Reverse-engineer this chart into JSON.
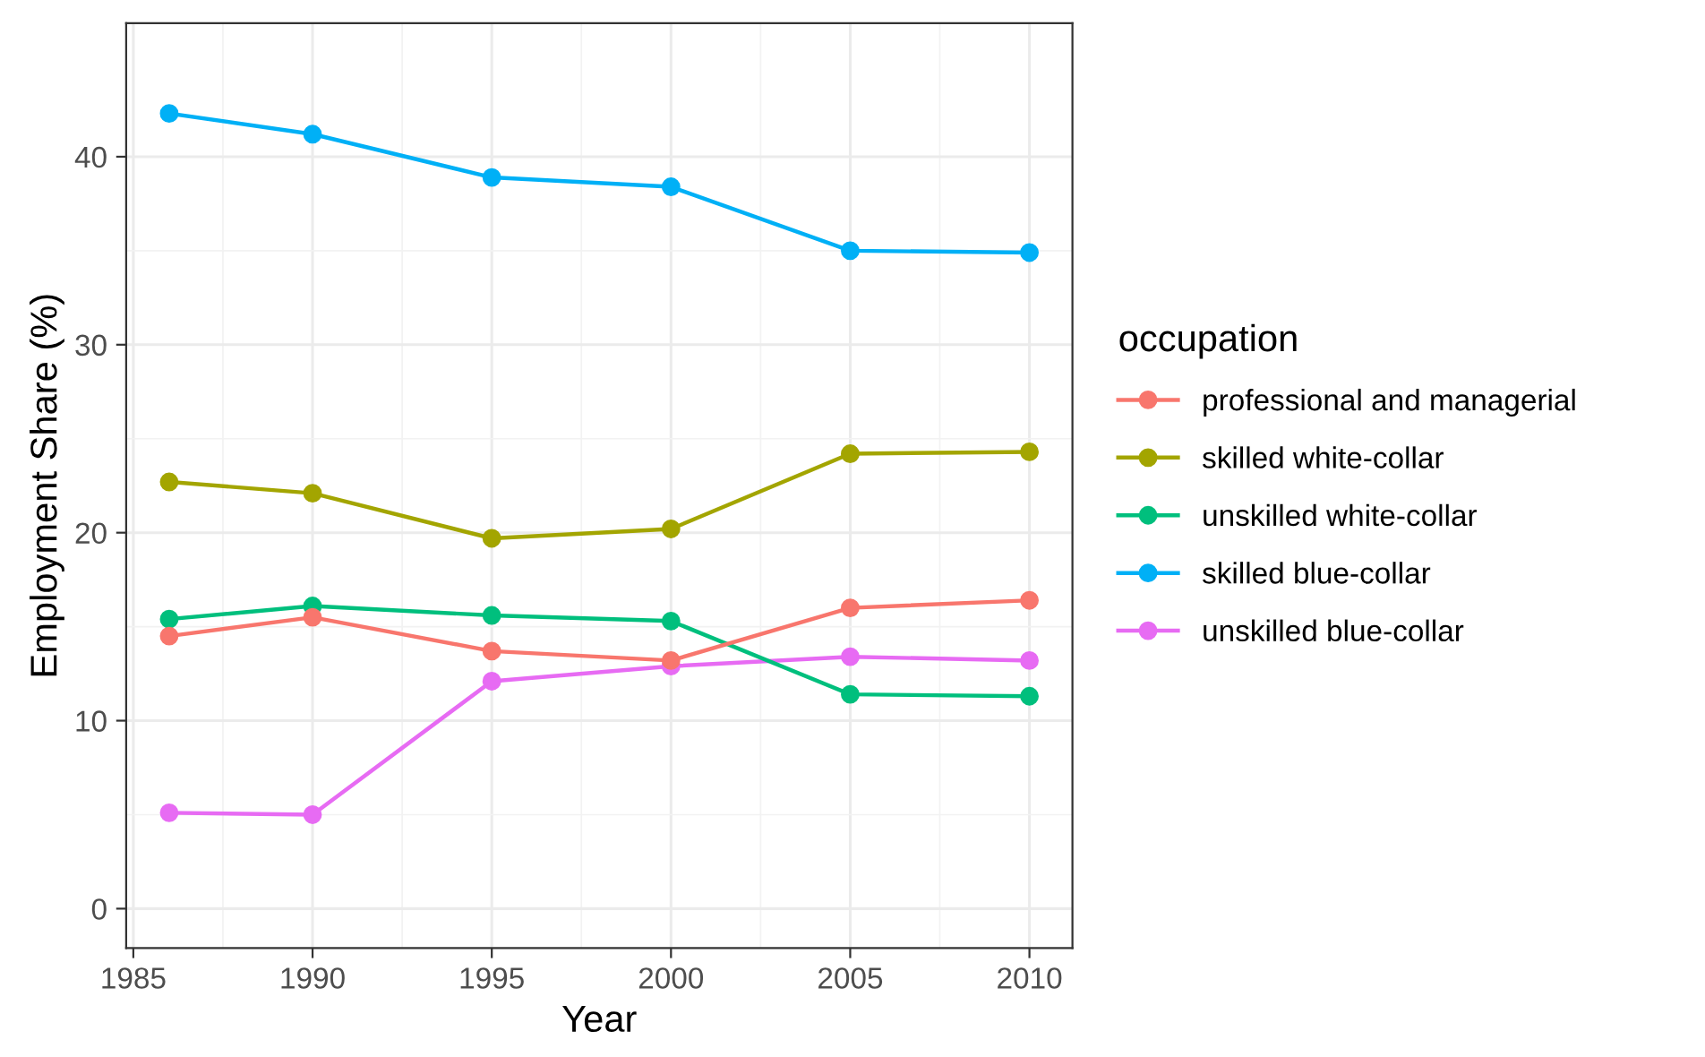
{
  "chart_data": {
    "type": "line",
    "xlabel": "Year",
    "ylabel": "Employment Share (%)",
    "legend_title": "occupation",
    "x": [
      1986,
      1990,
      1995,
      2000,
      2005,
      2010
    ],
    "series": [
      {
        "name": "professional and managerial",
        "color": "#f8766d",
        "values": [
          14.5,
          15.5,
          13.7,
          13.2,
          16.0,
          16.4
        ]
      },
      {
        "name": "skilled white-collar",
        "color": "#a3a500",
        "values": [
          22.7,
          22.1,
          19.7,
          20.2,
          24.2,
          24.3
        ]
      },
      {
        "name": "unskilled white-collar",
        "color": "#00bf7d",
        "values": [
          15.4,
          16.1,
          15.6,
          15.3,
          11.4,
          11.3
        ]
      },
      {
        "name": "skilled blue-collar",
        "color": "#00b0f6",
        "values": [
          42.3,
          41.2,
          38.9,
          38.4,
          35.0,
          34.9
        ]
      },
      {
        "name": "unskilled blue-collar",
        "color": "#e76bf3",
        "values": [
          5.1,
          5.0,
          12.1,
          12.9,
          13.4,
          13.2
        ]
      }
    ],
    "xlim": [
      1984.8,
      2011.2
    ],
    "ylim": [
      -2.1,
      47.1
    ],
    "xticks": [
      1985,
      1990,
      1995,
      2000,
      2005,
      2010
    ],
    "yticks": [
      0,
      10,
      20,
      30,
      40
    ],
    "grid": true,
    "legend": "right",
    "marker": "circle",
    "line_style": "solid"
  }
}
